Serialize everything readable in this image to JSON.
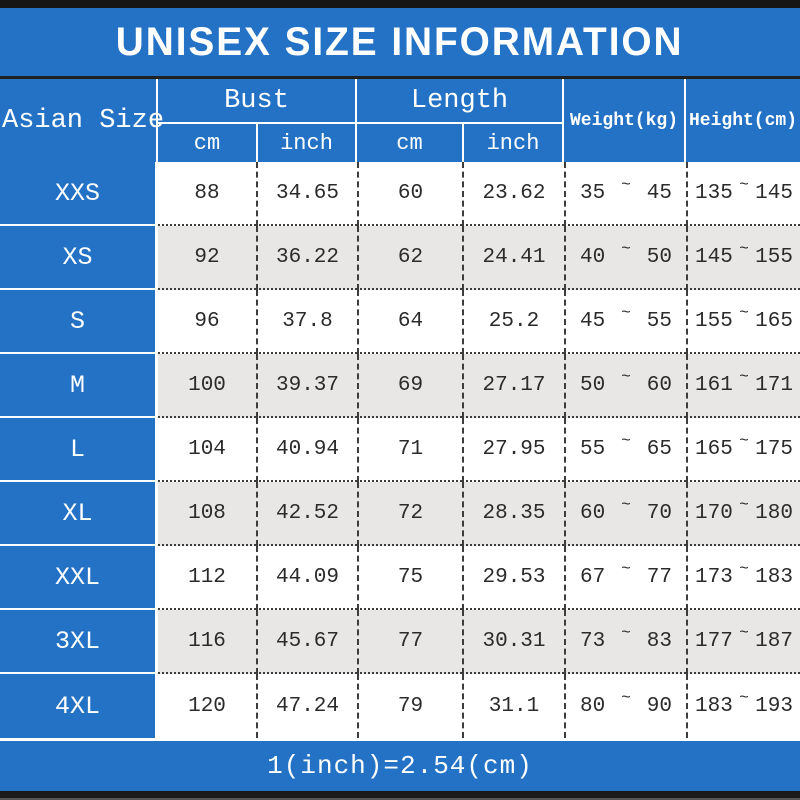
{
  "title": "UNISEX SIZE INFORMATION",
  "header": {
    "size_column": "Asian Size",
    "bust": {
      "label": "Bust",
      "cm": "cm",
      "inch": "inch"
    },
    "length": {
      "label": "Length",
      "cm": "cm",
      "inch": "inch"
    },
    "weight": "Weight(kg)",
    "height": "Height(cm)"
  },
  "range_separator": "~",
  "footer": {
    "note": "1(inch)=2.54(cm)"
  },
  "colors": {
    "primary_blue": "#2472c5",
    "alt_row_gray": "#e8e7e5",
    "bar_black": "#161616",
    "text_white": "#ffffff",
    "text_dark": "#2b2b2b"
  },
  "chart_data": {
    "type": "table",
    "title": "UNISEX SIZE INFORMATION",
    "columns": [
      "Asian Size",
      "Bust (cm)",
      "Bust (inch)",
      "Length (cm)",
      "Length (inch)",
      "Weight (kg) min",
      "Weight (kg) max",
      "Height (cm) min",
      "Height (cm) max"
    ],
    "rows": [
      [
        "XXS",
        "88",
        "34.65",
        "60",
        "23.62",
        "35",
        "45",
        "135",
        "145"
      ],
      [
        "XS",
        "92",
        "36.22",
        "62",
        "24.41",
        "40",
        "50",
        "145",
        "155"
      ],
      [
        "S",
        "96",
        "37.8",
        "64",
        "25.2",
        "45",
        "55",
        "155",
        "165"
      ],
      [
        "M",
        "100",
        "39.37",
        "69",
        "27.17",
        "50",
        "60",
        "161",
        "171"
      ],
      [
        "L",
        "104",
        "40.94",
        "71",
        "27.95",
        "55",
        "65",
        "165",
        "175"
      ],
      [
        "XL",
        "108",
        "42.52",
        "72",
        "28.35",
        "60",
        "70",
        "170",
        "180"
      ],
      [
        "XXL",
        "112",
        "44.09",
        "75",
        "29.53",
        "67",
        "77",
        "173",
        "183"
      ],
      [
        "3XL",
        "116",
        "45.67",
        "77",
        "30.31",
        "73",
        "83",
        "177",
        "187"
      ],
      [
        "4XL",
        "120",
        "47.24",
        "79",
        "31.1",
        "80",
        "90",
        "183",
        "193"
      ]
    ],
    "note": "1(inch)=2.54(cm)"
  }
}
